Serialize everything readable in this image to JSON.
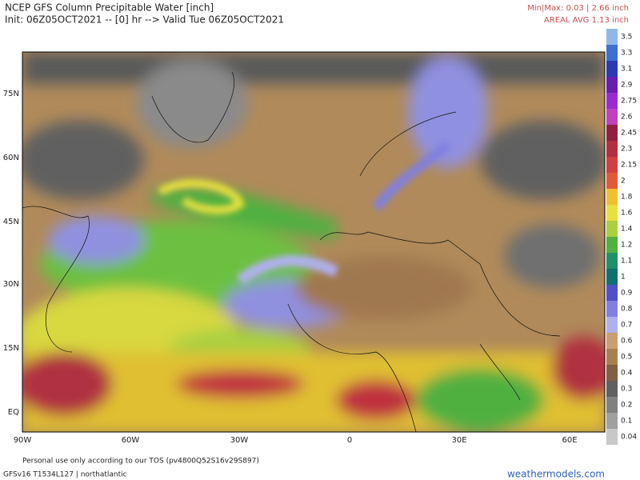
{
  "header": {
    "title": "NCEP GFS Column Precipitable Water [inch]",
    "subtitle": "Init: 06Z05OCT2021 -- [0] hr --> Valid Tue 06Z05OCT2021",
    "minmax": "Min|Max: 0.03 | 2.66 inch",
    "areal_avg": "AREAL AVG 1.13 inch"
  },
  "map": {
    "lat_labels": [
      "75N",
      "60N",
      "45N",
      "30N",
      "15N",
      "EQ"
    ],
    "lon_labels": [
      "90W",
      "60W",
      "30W",
      "0",
      "30E",
      "60E"
    ]
  },
  "colorbar": {
    "labels": [
      "3.5",
      "3.3",
      "3.1",
      "2.9",
      "2.75",
      "2.6",
      "2.45",
      "2.3",
      "2.15",
      "2",
      "1.8",
      "1.6",
      "1.4",
      "1.2",
      "1.1",
      "1",
      "0.9",
      "0.8",
      "0.7",
      "0.6",
      "0.5",
      "0.4",
      "0.3",
      "0.2",
      "0.1",
      "0.04"
    ]
  },
  "footer": {
    "tos": "Personal use only according to our TOS (pv4800Q52S16v29S897)",
    "model": "GFSv16 T1534L127 | northatlantic",
    "site": "weathermodels.com"
  }
}
